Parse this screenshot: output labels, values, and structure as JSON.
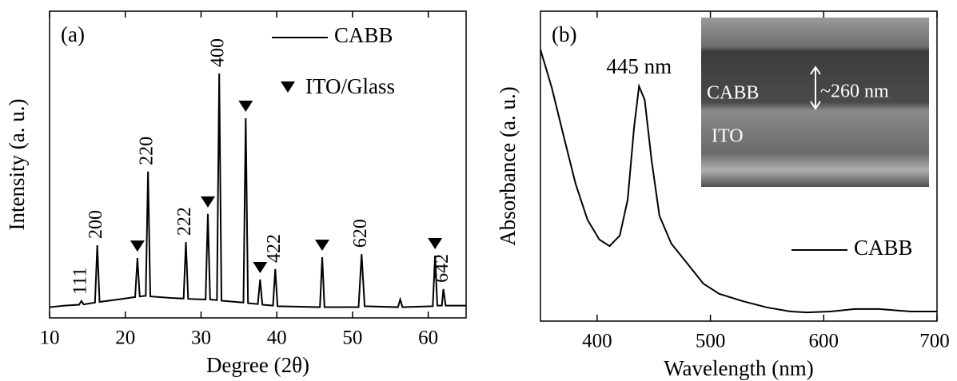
{
  "chart_data": [
    {
      "type": "line",
      "panel_label": "(a)",
      "xlabel": "Degree (2θ)",
      "ylabel": "Intensity (a. u.)",
      "xlim": [
        10,
        65
      ],
      "xticks": [
        10,
        20,
        30,
        40,
        50,
        60
      ],
      "ylim": [
        0,
        100
      ],
      "legend": "upper right",
      "x": [
        10,
        12,
        13.9,
        14.2,
        14.5,
        16,
        16.3,
        16.6,
        19,
        21.3,
        21.6,
        21.9,
        22.7,
        23.0,
        23.3,
        26,
        27.7,
        28.0,
        28.3,
        30.6,
        30.9,
        31.2,
        32.1,
        32.4,
        32.7,
        35.6,
        35.9,
        36.2,
        37.5,
        37.8,
        38.1,
        39.5,
        39.8,
        40.1,
        45.7,
        46.0,
        46.3,
        50.8,
        51.2,
        51.6,
        56,
        56.3,
        56.6,
        60.6,
        60.9,
        61.2,
        61.8,
        62.0,
        62.3,
        65
      ],
      "series": [
        {
          "name": "CABB",
          "color": "#000000",
          "values": [
            3.5,
            4,
            4.3,
            5.5,
            4.4,
            5,
            23.7,
            5.2,
            6,
            6.8,
            19.5,
            7,
            7.2,
            47.7,
            7,
            6.5,
            6.3,
            24.7,
            6.2,
            6,
            33.9,
            6,
            5.8,
            79.7,
            5.6,
            5,
            65.1,
            4.8,
            4.5,
            12.5,
            4.3,
            4,
            15.9,
            3.8,
            3.5,
            19.8,
            3.5,
            3.5,
            20.8,
            3.8,
            3.5,
            6,
            3.5,
            3.8,
            20.3,
            4,
            4,
            9.4,
            4,
            4
          ]
        }
      ],
      "markers": {
        "name": "ITO/Glass",
        "color": "#000000",
        "x": [
          21.6,
          30.9,
          35.9,
          37.8,
          46.0,
          60.9
        ]
      },
      "peak_labels": [
        {
          "text": "111",
          "x": 14.2
        },
        {
          "text": "200",
          "x": 16.3
        },
        {
          "text": "220",
          "x": 23.0
        },
        {
          "text": "222",
          "x": 28.0
        },
        {
          "text": "400",
          "x": 32.4
        },
        {
          "text": "422",
          "x": 39.8
        },
        {
          "text": "620",
          "x": 51.2
        },
        {
          "text": "642",
          "x": 62.0
        }
      ]
    },
    {
      "type": "line",
      "panel_label": "(b)",
      "xlabel": "Wavelength (nm)",
      "ylabel": "Absorbance (a. u.)",
      "xlim": [
        350,
        700
      ],
      "xticks": [
        400,
        500,
        600,
        700
      ],
      "ylim": [
        0,
        100
      ],
      "legend": "lower right",
      "x": [
        350,
        360,
        370.4,
        381,
        391.5,
        402,
        411,
        420,
        427,
        432.6,
        437,
        442,
        448,
        455,
        465.5,
        479.6,
        493.7,
        507.7,
        528.9,
        550,
        571,
        585,
        606,
        627.5,
        648.6,
        677,
        700
      ],
      "series": [
        {
          "name": "CABB",
          "color": "#000000",
          "values": [
            87.6,
            75.3,
            59.8,
            44.3,
            32.7,
            26.3,
            24.2,
            27.6,
            39.2,
            62.4,
            75.8,
            71.4,
            52.1,
            34,
            25,
            18.6,
            12.1,
            8.8,
            6.4,
            4.4,
            3.1,
            2.8,
            3.1,
            3.9,
            3.9,
            3.1,
            3.1
          ]
        }
      ],
      "peak_labels": [
        {
          "text": "445 nm",
          "x": 437
        }
      ],
      "inset": {
        "labels": [
          "CABB",
          "ITO",
          "~260 nm"
        ]
      }
    }
  ]
}
